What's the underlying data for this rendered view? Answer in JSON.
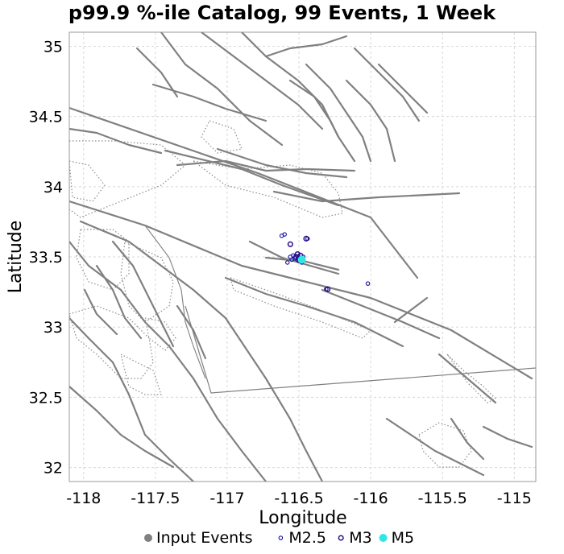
{
  "chart_data": {
    "type": "scatter",
    "title": "p99.9 %-ile Catalog, 99 Events, 1 Week",
    "xlabel": "Longitude",
    "ylabel": "Latitude",
    "xlim": [
      -118.1,
      -114.85
    ],
    "ylim": [
      31.9,
      35.1
    ],
    "xticks": [
      -118,
      -117.5,
      -117,
      -116.5,
      -116,
      -115.5,
      -115
    ],
    "yticks": [
      32,
      32.5,
      33,
      33.5,
      34,
      34.5,
      35
    ],
    "xtick_labels": [
      "-118",
      "-117.5",
      "-117",
      "-116.5",
      "-116",
      "-115.5",
      "-115"
    ],
    "ytick_labels": [
      "32",
      "32.5",
      "33",
      "33.5",
      "34",
      "34.5",
      "35"
    ],
    "grid": true,
    "legend_position": "bottom",
    "series": [
      {
        "name": "Input Events",
        "marker": "filled-circle",
        "color": "#808080",
        "points": []
      },
      {
        "name": "M2.5",
        "marker": "open-circle-small",
        "color": "#1010a0",
        "points": [
          [
            -116.62,
            33.65
          ],
          [
            -116.6,
            33.66
          ],
          [
            -116.58,
            33.46
          ],
          [
            -116.56,
            33.5
          ],
          [
            -116.55,
            33.48
          ],
          [
            -116.53,
            33.49
          ],
          [
            -116.5,
            33.47
          ],
          [
            -116.48,
            33.46
          ],
          [
            -116.47,
            33.5
          ],
          [
            -116.44,
            33.63
          ],
          [
            -116.31,
            33.27
          ],
          [
            -116.02,
            33.31
          ],
          [
            -116.54,
            33.51
          ],
          [
            -116.51,
            33.48
          ]
        ]
      },
      {
        "name": "M3",
        "marker": "open-circle",
        "color": "#2a0a8a",
        "points": [
          [
            -116.56,
            33.59
          ],
          [
            -116.52,
            33.5
          ],
          [
            -116.51,
            33.52
          ],
          [
            -116.5,
            33.49
          ],
          [
            -116.49,
            33.51
          ],
          [
            -116.45,
            33.63
          ],
          [
            -116.3,
            33.27
          ]
        ]
      },
      {
        "name": "M5",
        "marker": "filled-circle",
        "color": "#33e6e6",
        "points": [
          [
            -116.48,
            33.48
          ]
        ]
      }
    ],
    "colors": {
      "fault": "#808080",
      "grid": "#d8d8d8"
    }
  }
}
